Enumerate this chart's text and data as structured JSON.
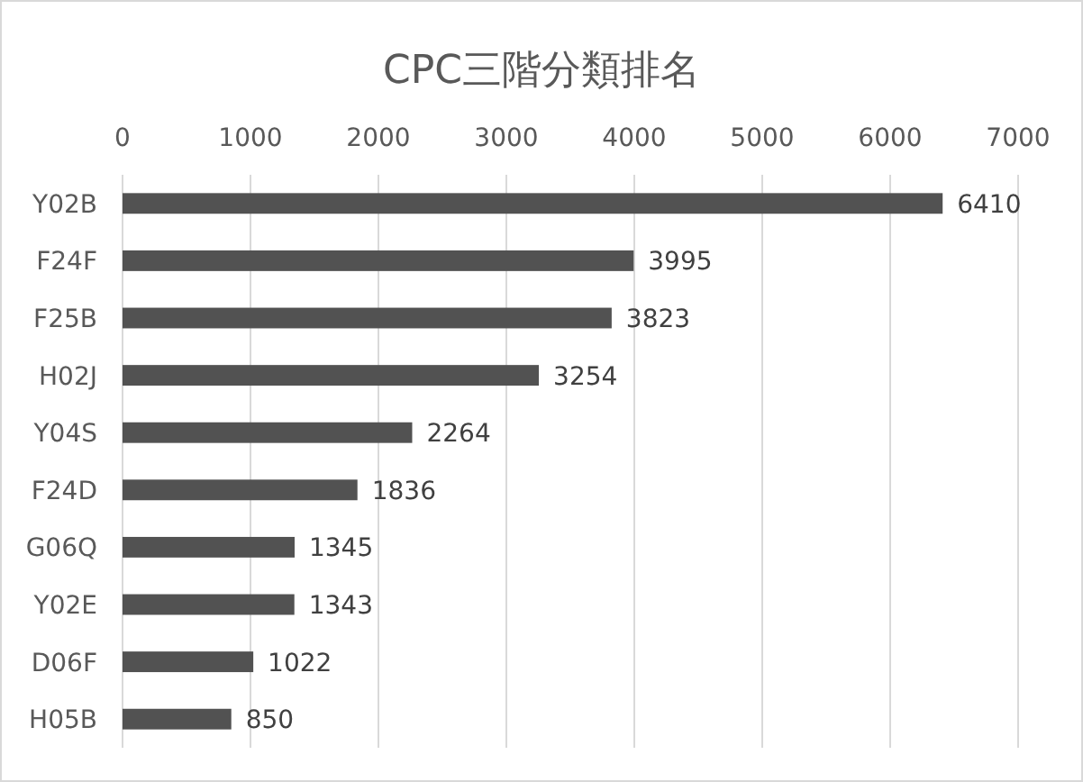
{
  "chart_data": {
    "type": "bar",
    "orientation": "horizontal",
    "title": "CPC三階分類排名",
    "categories": [
      "Y02B",
      "F24F",
      "F25B",
      "H02J",
      "Y04S",
      "F24D",
      "G06Q",
      "Y02E",
      "D06F",
      "H05B"
    ],
    "values": [
      6410,
      3995,
      3823,
      3254,
      2264,
      1836,
      1345,
      1343,
      1022,
      850
    ],
    "color": "#525252",
    "xlim": [
      0,
      7000
    ],
    "xticks": [
      0,
      1000,
      2000,
      3000,
      4000,
      5000,
      6000,
      7000
    ],
    "grid": "x",
    "data_labels": true
  }
}
